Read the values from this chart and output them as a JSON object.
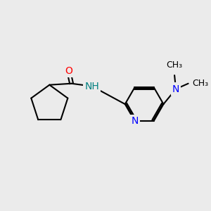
{
  "bg_color": "#ebebeb",
  "bond_color": "#000000",
  "bond_width": 1.5,
  "atom_colors": {
    "O": "#ff0000",
    "N": "#0000ff",
    "NH": "#008080",
    "C": "#000000"
  },
  "font_size": 10,
  "font_size_small": 9
}
